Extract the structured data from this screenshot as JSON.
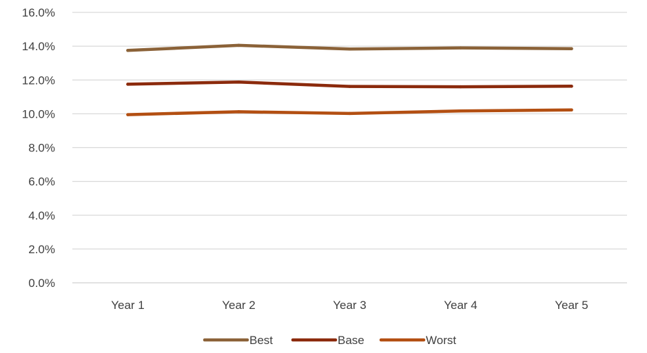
{
  "chart_data": {
    "type": "line",
    "title": "",
    "xlabel": "",
    "ylabel": "",
    "categories": [
      "Year 1",
      "Year 2",
      "Year 3",
      "Year 4",
      "Year 5"
    ],
    "y_ticks": [
      "0.0%",
      "2.0%",
      "4.0%",
      "6.0%",
      "8.0%",
      "10.0%",
      "12.0%",
      "14.0%",
      "16.0%"
    ],
    "ylim": [
      0,
      16
    ],
    "y_unit": "%",
    "grid": "horizontal",
    "legend_position": "bottom",
    "series": [
      {
        "name": "Best",
        "color": "#8B6238",
        "values": [
          13.75,
          14.05,
          13.83,
          13.9,
          13.85
        ]
      },
      {
        "name": "Base",
        "color": "#8B2A0C",
        "values": [
          11.75,
          11.88,
          11.62,
          11.6,
          11.63
        ]
      },
      {
        "name": "Worst",
        "color": "#B34F12",
        "values": [
          9.95,
          10.12,
          10.02,
          10.17,
          10.23
        ]
      }
    ]
  }
}
